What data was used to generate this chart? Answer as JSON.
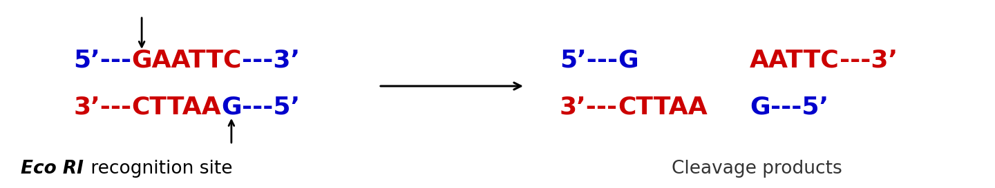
{
  "bg_color": "#ffffff",
  "blue": "#0000cc",
  "red": "#cc0000",
  "black": "#000000",
  "dark_gray": "#333333",
  "left_top_strand": [
    {
      "text": "5’---",
      "color": "#0000cc"
    },
    {
      "text": "GAATTC",
      "color": "#cc0000"
    },
    {
      "text": "---3’",
      "color": "#0000cc"
    }
  ],
  "left_bot_strand": [
    {
      "text": "3’---",
      "color": "#cc0000"
    },
    {
      "text": "CTTAA",
      "color": "#cc0000"
    },
    {
      "text": "G",
      "color": "#0000cc"
    },
    {
      "text": "---5’",
      "color": "#0000cc"
    }
  ],
  "right_top_left": [
    {
      "text": "5’---",
      "color": "#0000cc"
    },
    {
      "text": "G",
      "color": "#0000cc"
    }
  ],
  "right_top_right": [
    {
      "text": "AATTC",
      "color": "#cc0000"
    },
    {
      "text": "---3’",
      "color": "#cc0000"
    }
  ],
  "right_bot_left": [
    {
      "text": "3’---",
      "color": "#cc0000"
    },
    {
      "text": "CTTAA",
      "color": "#cc0000"
    }
  ],
  "right_bot_right": [
    {
      "text": "G",
      "color": "#0000cc"
    },
    {
      "text": "---5’",
      "color": "#0000cc"
    }
  ],
  "label_right": "Cleavage products",
  "font_size_seq": 26,
  "font_size_label": 19
}
